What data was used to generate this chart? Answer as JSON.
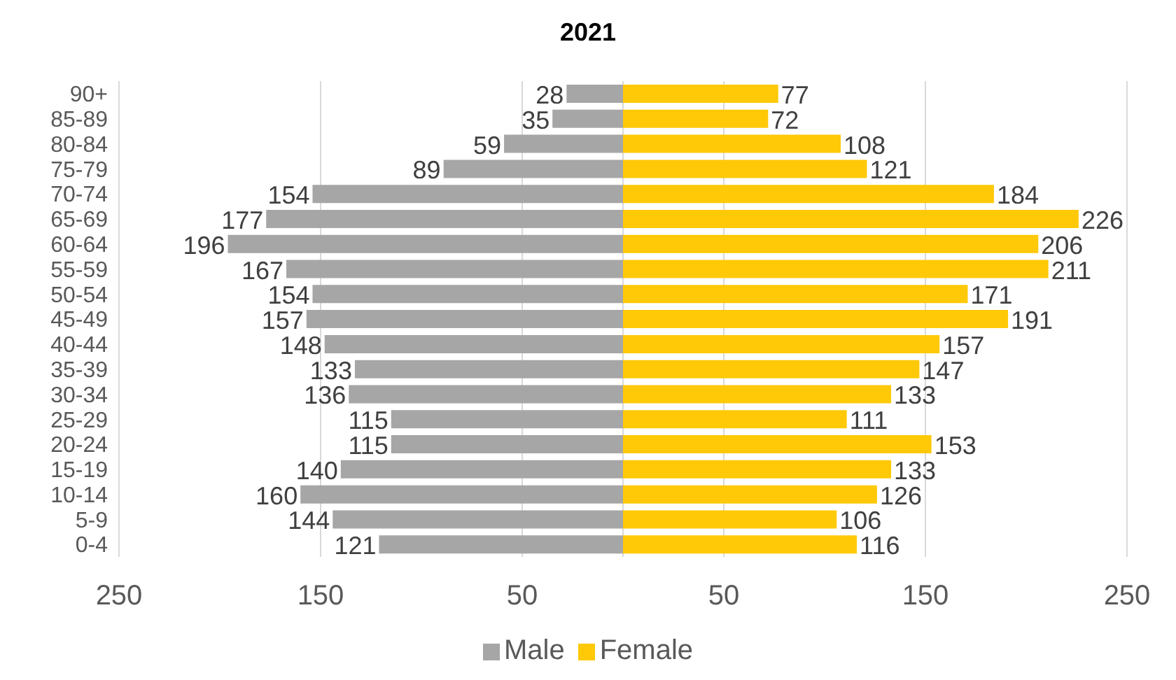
{
  "chart_data": [
    {
      "type": "bar",
      "orientation": "horizontal",
      "title": "2021",
      "categories": [
        "90+",
        "85-89",
        "80-84",
        "75-79",
        "70-74",
        "65-69",
        "60-64",
        "55-59",
        "50-54",
        "45-49",
        "40-44",
        "35-39",
        "30-34",
        "25-29",
        "20-24",
        "15-19",
        "10-14",
        "5-9",
        "0-4"
      ],
      "series": [
        {
          "name": "Male",
          "color": "#a6a6a6",
          "values": [
            28,
            35,
            59,
            89,
            154,
            177,
            196,
            167,
            154,
            157,
            148,
            133,
            136,
            115,
            115,
            140,
            160,
            144,
            121
          ]
        }
      ],
      "xlim": [
        250,
        0
      ],
      "xticks": [
        250,
        150,
        50
      ],
      "data_labels": true,
      "grid": "x",
      "legend": "bottom"
    },
    {
      "type": "bar",
      "orientation": "horizontal",
      "series": [
        {
          "name": "Female",
          "color": "#ffc907",
          "values": [
            77,
            72,
            108,
            121,
            184,
            226,
            206,
            211,
            171,
            191,
            157,
            147,
            133,
            111,
            153,
            133,
            126,
            106,
            116
          ]
        }
      ],
      "xlim": [
        0,
        250
      ],
      "xticks": [
        50,
        150,
        250
      ],
      "data_labels": true,
      "grid": "x",
      "legend": "bottom",
      "tick_labels": "x"
    }
  ]
}
